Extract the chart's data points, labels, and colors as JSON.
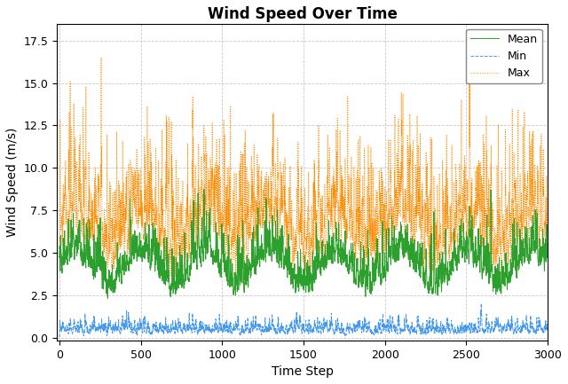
{
  "title": "Wind Speed Over Time",
  "xlabel": "Time Step",
  "ylabel": "Wind Speed (m/s)",
  "n_steps": 3000,
  "ylim": [
    -0.15,
    18.5
  ],
  "xlim": [
    -15,
    3000
  ],
  "yticks": [
    0.0,
    2.5,
    5.0,
    7.5,
    10.0,
    12.5,
    15.0,
    17.5
  ],
  "xticks": [
    0,
    500,
    1000,
    1500,
    2000,
    2500,
    3000
  ],
  "mean_color": "#2ca02c",
  "min_color": "#4499ee",
  "max_color": "#ff8c00",
  "mean_label": "Mean",
  "min_label": "Min",
  "max_label": "Max",
  "mean_linestyle": "-",
  "min_linestyle": "--",
  "max_linestyle": ":",
  "linewidth": 0.7,
  "grid_color": "#b0b0b0",
  "grid_linestyle": "--",
  "background_color": "#ffffff",
  "title_fontsize": 12,
  "label_fontsize": 10,
  "tick_fontsize": 9,
  "legend_fontsize": 9,
  "seed": 7
}
